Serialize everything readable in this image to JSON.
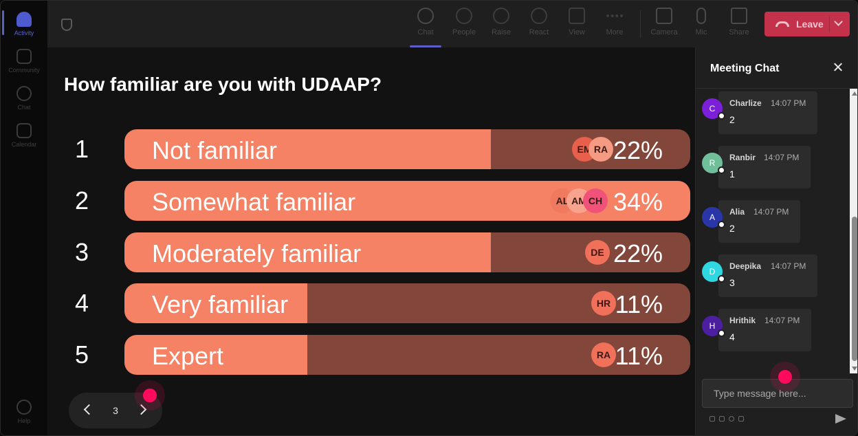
{
  "rail": {
    "items": [
      {
        "label": "Activity",
        "icon": "bell-icon"
      },
      {
        "label": "Community",
        "icon": "community-icon"
      },
      {
        "label": "Chat",
        "icon": "chat-icon"
      },
      {
        "label": "Calendar",
        "icon": "calendar-icon"
      }
    ],
    "help_label": "Help"
  },
  "toolbar": {
    "items": [
      {
        "label": "Chat",
        "icon": "chat-icon"
      },
      {
        "label": "People",
        "icon": "people-icon"
      },
      {
        "label": "Raise",
        "icon": "hand-icon"
      },
      {
        "label": "React",
        "icon": "smiley-icon"
      },
      {
        "label": "View",
        "icon": "grid-icon"
      },
      {
        "label": "More",
        "icon": "more-icon"
      },
      {
        "label": "Camera",
        "icon": "camera-off-icon"
      },
      {
        "label": "Mic",
        "icon": "mic-icon"
      },
      {
        "label": "Share",
        "icon": "share-icon"
      }
    ],
    "leave_label": "Leave",
    "leave_color": "#c4314b"
  },
  "poll": {
    "question": "How familiar are you with UDAAP?",
    "options": [
      {
        "number": "1",
        "label": "Not familiar",
        "percent_label": "22%",
        "percent": 22,
        "avatars": [
          {
            "initials": "EM",
            "color": "#e8604c"
          },
          {
            "initials": "RA",
            "color": "#f59a83"
          }
        ]
      },
      {
        "number": "2",
        "label": "Somewhat familiar",
        "percent_label": "34%",
        "percent": 34,
        "avatars": [
          {
            "initials": "AL",
            "color": "#ef7a60"
          },
          {
            "initials": "AM",
            "color": "#f7a38e"
          },
          {
            "initials": "CH",
            "color": "#f0527a"
          }
        ]
      },
      {
        "number": "3",
        "label": "Moderately familiar",
        "percent_label": "22%",
        "percent": 22,
        "avatars": [
          {
            "initials": "DE",
            "color": "#f0705a"
          }
        ]
      },
      {
        "number": "4",
        "label": "Very familiar",
        "percent_label": "11%",
        "percent": 11,
        "avatars": [
          {
            "initials": "HR",
            "color": "#f0705a"
          }
        ]
      },
      {
        "number": "5",
        "label": "Expert",
        "percent_label": "11%",
        "percent": 11,
        "avatars": [
          {
            "initials": "RA",
            "color": "#f0705a"
          }
        ]
      }
    ],
    "page": "3",
    "bar_color": "#f58265",
    "track_color": "#83463a"
  },
  "chat": {
    "title": "Meeting Chat",
    "messages": [
      {
        "initial": "C",
        "name": "Charlize",
        "time": "14:07 PM",
        "text": "2",
        "color": "#7b1fd8"
      },
      {
        "initial": "R",
        "name": "Ranbir",
        "time": "14:07 PM",
        "text": "1",
        "color": "#6fbf9a"
      },
      {
        "initial": "A",
        "name": "Alia",
        "time": "14:07 PM",
        "text": "2",
        "color": "#2a36a8"
      },
      {
        "initial": "D",
        "name": "Deepika",
        "time": "14:07 PM",
        "text": "3",
        "color": "#2fd8e0"
      },
      {
        "initial": "H",
        "name": "Hrithik",
        "time": "14:07 PM",
        "text": "4",
        "color": "#4b1fa0"
      }
    ],
    "compose_placeholder": "Type message here..."
  }
}
